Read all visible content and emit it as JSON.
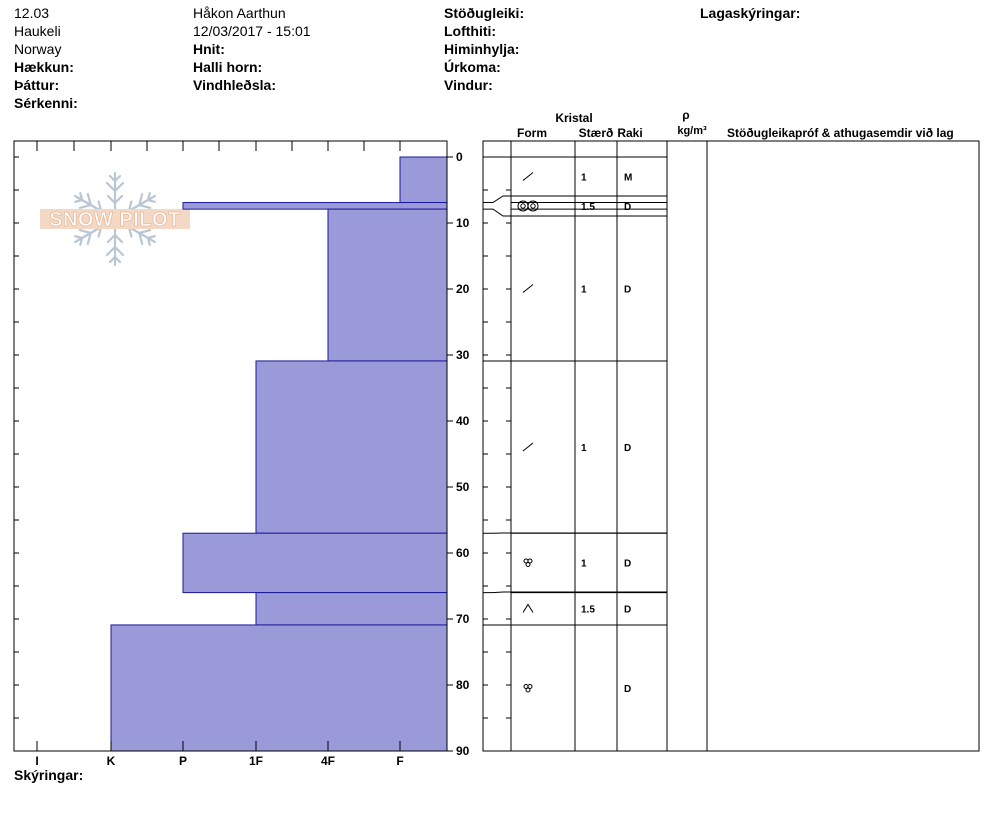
{
  "header": {
    "col1": [
      "12.03",
      "Haukeli",
      "Norway"
    ],
    "col2": [
      "Håkon Aarthun",
      "12/03/2017 - 15:01"
    ],
    "hnit": "Hnit:",
    "halli_horn": "Halli horn:",
    "vindhledsla": "Vindhleðsla:",
    "haekkun": "Hækkun:",
    "thattur": "Þáttur:",
    "serkenni": "Sérkenni:",
    "stodugleiki": "Stöðugleiki:",
    "lofthiti": "Lofthiti:",
    "himinhylja": "Himinhylja:",
    "urkoma": "Úrkoma:",
    "vindur": "Vindur:",
    "lagaskyringar": "Lagaskýringar:"
  },
  "logo": {
    "text": "SNOW PILOT",
    "icon": "snowflake-icon"
  },
  "columns": {
    "kristal": "Kristal",
    "form": "Form",
    "staerd": "Stærð",
    "raki": "Raki",
    "rho": "ρ",
    "density_unit": "kg/m³",
    "comments": "Stöðugleikapróf & athugasemdir við lag"
  },
  "footer": {
    "skyringar": "Skýringar:"
  },
  "chart_data": {
    "type": "bar",
    "orientation": "horizontal",
    "x_axis": {
      "categories": [
        "I",
        "K",
        "P",
        "1F",
        "4F",
        "F"
      ],
      "reversed": true
    },
    "y_axis": {
      "range": [
        0,
        90
      ],
      "ticks": [
        0,
        10,
        20,
        30,
        40,
        50,
        60,
        70,
        80,
        90
      ],
      "reversed": true
    },
    "grid": false,
    "layers": [
      {
        "top": 0,
        "bottom": 6.9,
        "hardness": "F",
        "form": "slash-icon",
        "size": "1",
        "moisture": "M"
      },
      {
        "top": 6.9,
        "bottom": 7.9,
        "hardness": "P",
        "form": "rounded-grains-icon",
        "size": "1.5",
        "moisture": "D"
      },
      {
        "top": 7.9,
        "bottom": 30.9,
        "hardness": "4F",
        "form": "slash-icon",
        "size": "1",
        "moisture": "D"
      },
      {
        "top": 30.9,
        "bottom": 57,
        "hardness": "1F",
        "form": "slash-icon",
        "size": "1",
        "moisture": "D"
      },
      {
        "top": 57,
        "bottom": 66,
        "hardness": "P",
        "form": "clustered-rounded-icon",
        "size": "1",
        "moisture": "D"
      },
      {
        "top": 66,
        "bottom": 70.9,
        "hardness": "1F",
        "form": "caret-icon",
        "size": "1.5",
        "moisture": "D"
      },
      {
        "top": 70.9,
        "bottom": 90,
        "hardness": "K",
        "form": "clustered-rounded-icon",
        "size": "",
        "moisture": "D"
      }
    ],
    "colors": {
      "fill": "#9a9ad8",
      "edge": "#1a1a9a"
    }
  }
}
